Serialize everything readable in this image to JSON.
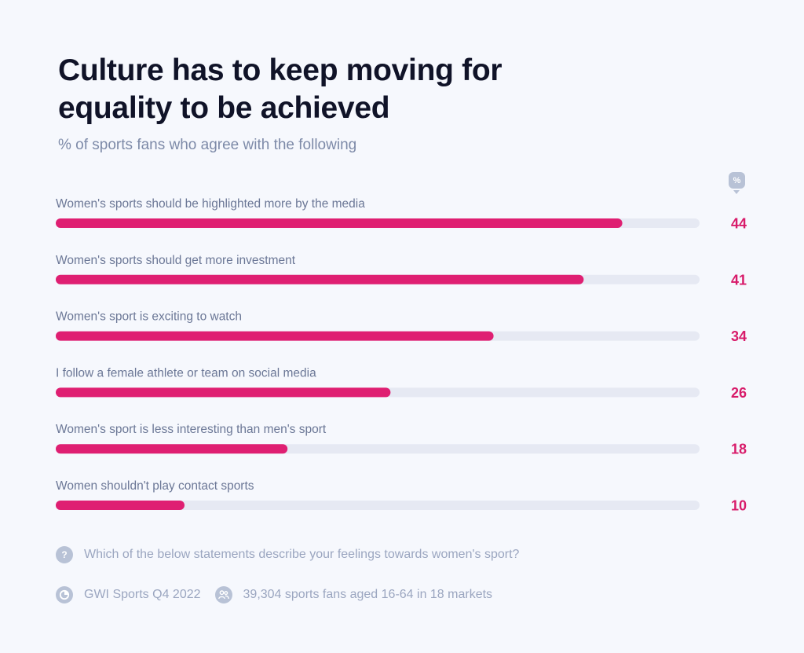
{
  "header": {
    "title": "Culture has to keep moving for equality to be achieved",
    "subtitle": "% of sports fans who agree with the following",
    "unit_badge": "%"
  },
  "colors": {
    "bar_fill": "#df1f72",
    "bar_track": "#e6e9f3",
    "value_text": "#d81b6a",
    "title_text": "#101328"
  },
  "chart_data": {
    "type": "bar",
    "orientation": "horizontal",
    "categories": [
      "Women's sports should be highlighted more by the media",
      "Women's sports should get more investment",
      "Women's sport is exciting to watch",
      "I follow a female athlete or team on social media",
      "Women's sport is less interesting than men's sport",
      "Women shouldn't play contact sports"
    ],
    "values": [
      44,
      41,
      34,
      26,
      18,
      10
    ],
    "xlim": [
      0,
      50
    ],
    "grid": false,
    "legend": "none"
  },
  "footer": {
    "question_icon": "question-icon",
    "question": "Which of the below statements describe your feelings towards women's sport?",
    "source_icon": "gwi-logo-icon",
    "source": "GWI Sports Q4 2022",
    "sample_icon": "people-icon",
    "sample": "39,304 sports fans aged 16-64 in 18 markets"
  }
}
